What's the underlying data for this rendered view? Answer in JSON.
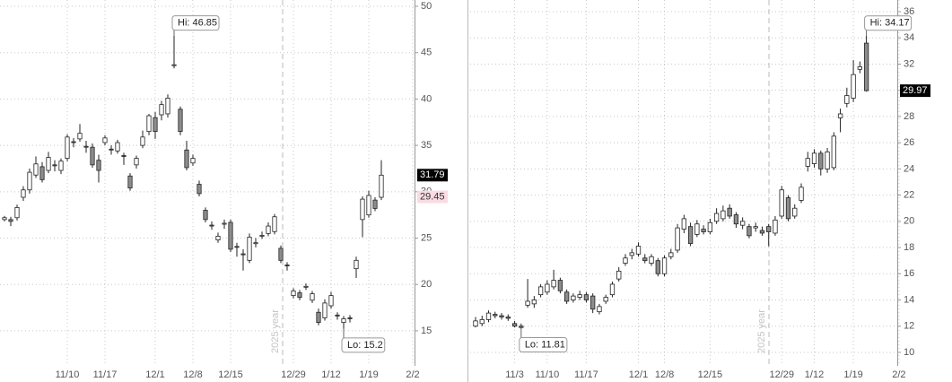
{
  "chart_data": [
    {
      "type": "candlestick",
      "categories": [
        null,
        null,
        null,
        null,
        null,
        null,
        null,
        null,
        null,
        null,
        "11/10",
        null,
        null,
        null,
        null,
        null,
        "11/17",
        null,
        null,
        null,
        null,
        null,
        null,
        null,
        "12/1",
        null,
        null,
        null,
        null,
        null,
        "12/8",
        null,
        null,
        null,
        null,
        null,
        "12/15",
        null,
        null,
        null,
        null,
        null,
        null,
        null,
        null,
        null,
        "12/29",
        null,
        null,
        null,
        null,
        null,
        "1/12",
        null,
        null,
        null,
        null,
        null,
        "1/19",
        null,
        null,
        null,
        null,
        null,
        null,
        "2/2"
      ],
      "open": [
        27.0,
        27.0,
        27.2,
        29.4,
        30.2,
        31.8,
        32.7,
        32.3,
        32.9,
        32.3,
        33.6,
        35.4,
        35.7,
        34.9,
        34.8,
        33.4,
        35.3,
        34.6,
        34.4,
        33.9,
        31.7,
        32.9,
        35.0,
        36.5,
        38.0,
        38.3,
        38.4,
        43.6,
        38.9,
        34.5,
        33.1,
        30.8,
        28.0,
        26.4,
        24.8,
        26.5,
        26.7,
        24.1,
        23.3,
        22.6,
        24.4,
        25.2,
        25.5,
        25.7,
        23.9,
        22.1,
        18.8,
        19.1,
        19.7,
        18.3,
        17.0,
        16.4,
        17.7,
        16.7,
        15.9,
        16.4,
        21.7,
        27.0,
        27.5,
        29.1,
        29.4,
        null,
        null,
        null,
        null,
        null
      ],
      "high": [
        27.4,
        27.3,
        28.6,
        30.6,
        32.5,
        33.8,
        33.2,
        34.3,
        33.4,
        33.6,
        36.2,
        35.8,
        37.3,
        35.5,
        35.2,
        34.0,
        36.1,
        35.0,
        35.6,
        34.2,
        32.0,
        33.9,
        36.6,
        38.4,
        38.6,
        39.8,
        40.5,
        46.85,
        39.2,
        35.5,
        34.0,
        31.2,
        28.3,
        26.8,
        25.6,
        27.0,
        27.0,
        24.5,
        23.8,
        25.5,
        25.0,
        25.7,
        26.7,
        27.6,
        24.2,
        22.4,
        19.6,
        19.4,
        20.1,
        19.3,
        17.4,
        18.4,
        19.2,
        17.0,
        16.6,
        16.7,
        23.0,
        29.5,
        30.1,
        29.4,
        33.4,
        null,
        null,
        null,
        null,
        null
      ],
      "low": [
        26.8,
        26.3,
        26.9,
        29.0,
        29.8,
        31.5,
        31.0,
        32.0,
        32.2,
        31.9,
        33.3,
        34.8,
        35.4,
        34.2,
        32.6,
        31.0,
        35.0,
        34.0,
        34.1,
        32.9,
        30.1,
        32.5,
        34.7,
        36.1,
        35.7,
        37.7,
        38.0,
        43.3,
        36.1,
        32.3,
        32.8,
        29.5,
        26.7,
        25.9,
        24.5,
        26.0,
        23.5,
        23.0,
        21.5,
        22.3,
        24.0,
        24.9,
        25.2,
        25.4,
        22.3,
        21.5,
        18.5,
        18.3,
        19.4,
        18.0,
        15.6,
        16.1,
        17.4,
        16.2,
        15.2,
        15.9,
        20.7,
        25.1,
        27.2,
        27.9,
        29.1,
        null,
        null,
        null,
        null,
        null
      ],
      "close": [
        27.2,
        26.8,
        28.3,
        30.2,
        32.1,
        33.0,
        31.3,
        33.7,
        32.8,
        33.3,
        35.9,
        35.3,
        36.3,
        34.8,
        32.9,
        32.3,
        35.8,
        34.5,
        35.3,
        33.8,
        30.4,
        33.6,
        35.9,
        38.2,
        36.5,
        39.4,
        40.1,
        43.7,
        36.5,
        32.6,
        33.6,
        29.8,
        27.0,
        26.3,
        25.2,
        26.6,
        23.8,
        24.0,
        23.2,
        25.1,
        24.5,
        25.3,
        26.3,
        27.3,
        22.6,
        22.0,
        19.3,
        18.6,
        19.8,
        19.0,
        15.9,
        18.0,
        18.8,
        16.6,
        16.3,
        16.3,
        22.6,
        29.2,
        29.6,
        28.2,
        31.79,
        null,
        null,
        null,
        null,
        null
      ],
      "ylim": [
        11.22,
        50.68
      ],
      "yticks": [
        15,
        20,
        25,
        30,
        35,
        40,
        45,
        50
      ],
      "hi_label": "Hi: 46.85",
      "lo_label": "Lo: 15.2",
      "divider_label": "2025 year",
      "price_labels": [
        31.79,
        29.45
      ],
      "price_label_colors": [
        "#000000",
        "#f8dbe3"
      ],
      "up_color": "#ffffff",
      "down_color": "#8c8c8c",
      "grid": true
    },
    {
      "type": "candlestick",
      "categories": [
        null,
        null,
        null,
        null,
        null,
        null,
        "11/3",
        null,
        null,
        null,
        null,
        "11/10",
        null,
        null,
        null,
        null,
        null,
        "11/17",
        null,
        null,
        null,
        null,
        null,
        null,
        null,
        "12/1",
        null,
        null,
        null,
        "12/8",
        null,
        null,
        null,
        null,
        null,
        null,
        "12/15",
        null,
        null,
        null,
        null,
        null,
        null,
        null,
        null,
        null,
        null,
        "12/29",
        null,
        null,
        null,
        null,
        "1/12",
        null,
        null,
        null,
        null,
        null,
        "1/19",
        null,
        null,
        null,
        null,
        null,
        null,
        "2/2"
      ],
      "open": [
        12.0,
        12.2,
        12.5,
        12.9,
        12.8,
        12.7,
        12.2,
        12.0,
        13.6,
        13.7,
        14.4,
        14.6,
        15.0,
        15.5,
        14.6,
        14.0,
        14.2,
        14.4,
        14.3,
        13.1,
        13.9,
        14.4,
        15.6,
        16.8,
        17.4,
        17.5,
        17.2,
        16.8,
        17.0,
        16.0,
        17.3,
        17.8,
        19.4,
        19.6,
        19.0,
        19.4,
        19.2,
        20.0,
        20.2,
        21.0,
        20.5,
        19.7,
        19.6,
        19.5,
        19.3,
        19.6,
        19.1,
        20.4,
        21.8,
        20.4,
        21.6,
        24.2,
        24.4,
        25.2,
        24.0,
        24.1,
        27.9,
        29.0,
        29.4,
        31.6,
        33.6,
        null,
        null,
        null,
        null,
        null
      ],
      "high": [
        12.7,
        12.8,
        13.2,
        13.1,
        13.0,
        12.9,
        12.4,
        12.2,
        15.6,
        14.3,
        15.2,
        15.5,
        16.3,
        15.7,
        14.8,
        14.5,
        14.7,
        14.6,
        14.5,
        13.7,
        14.4,
        15.4,
        16.5,
        17.5,
        17.9,
        18.4,
        17.5,
        17.5,
        17.2,
        17.4,
        17.9,
        19.8,
        20.5,
        19.9,
        20.1,
        19.7,
        20.2,
        21.0,
        21.2,
        21.3,
        20.7,
        20.3,
        19.8,
        19.9,
        19.6,
        19.8,
        20.4,
        22.7,
        22.0,
        21.3,
        22.9,
        25.3,
        25.5,
        25.4,
        25.6,
        26.8,
        28.6,
        30.2,
        32.3,
        32.2,
        34.17,
        null,
        null,
        null,
        null,
        null
      ],
      "low": [
        11.9,
        12.0,
        12.3,
        12.6,
        12.5,
        12.4,
        11.9,
        11.81,
        13.4,
        13.4,
        14.2,
        14.4,
        14.8,
        14.5,
        13.7,
        13.8,
        14.0,
        13.8,
        13.0,
        12.9,
        13.7,
        14.2,
        15.4,
        16.6,
        17.1,
        17.3,
        16.8,
        16.6,
        15.8,
        15.8,
        17.1,
        17.6,
        19.1,
        18.1,
        18.8,
        19.0,
        19.0,
        19.8,
        20.0,
        20.2,
        19.5,
        19.4,
        18.7,
        19.2,
        18.9,
        18.1,
        18.9,
        20.2,
        20.0,
        20.2,
        21.4,
        23.8,
        24.1,
        23.5,
        23.7,
        23.9,
        26.8,
        28.7,
        29.1,
        31.3,
        29.9,
        null,
        null,
        null,
        null,
        null
      ],
      "close": [
        12.4,
        12.5,
        13.0,
        12.8,
        12.7,
        12.6,
        12.0,
        11.9,
        13.9,
        14.0,
        15.0,
        15.2,
        15.5,
        14.7,
        13.9,
        14.3,
        14.4,
        14.0,
        13.3,
        13.5,
        14.2,
        15.2,
        16.2,
        17.2,
        17.6,
        18.1,
        17.0,
        17.3,
        16.0,
        17.2,
        17.6,
        19.5,
        20.2,
        18.3,
        19.8,
        19.2,
        19.9,
        20.6,
        20.8,
        20.4,
        19.8,
        20.0,
        18.9,
        19.6,
        19.1,
        19.2,
        20.1,
        22.4,
        20.2,
        21.0,
        22.6,
        24.8,
        25.2,
        24.0,
        25.3,
        26.5,
        28.2,
        29.6,
        31.2,
        31.8,
        29.97,
        null,
        null,
        null,
        null,
        null
      ],
      "ylim": [
        8.97,
        36.89
      ],
      "yticks": [
        10,
        12,
        14,
        16,
        18,
        20,
        22,
        24,
        26,
        28,
        30,
        32,
        34,
        36
      ],
      "hi_label": "Hi: 34.17",
      "lo_label": "Lo: 11.81",
      "divider_label": "2025 year",
      "price_labels": [
        29.97
      ],
      "price_label_colors": [
        "#000000"
      ],
      "up_color": "#ffffff",
      "down_color": "#8c8c8c",
      "grid": true
    }
  ]
}
